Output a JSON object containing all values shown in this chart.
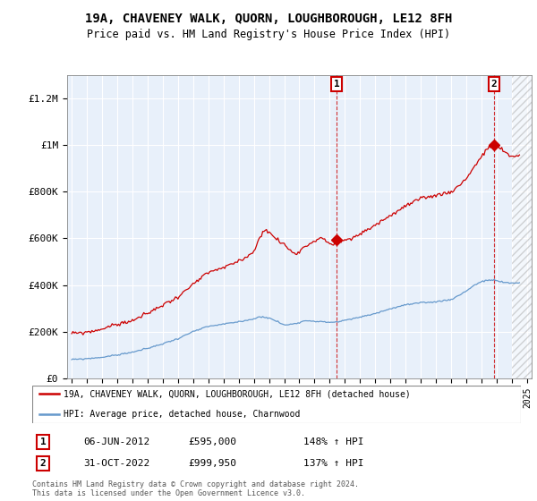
{
  "title": "19A, CHAVENEY WALK, QUORN, LOUGHBOROUGH, LE12 8FH",
  "subtitle": "Price paid vs. HM Land Registry's House Price Index (HPI)",
  "ylabel_ticks": [
    "£0",
    "£200K",
    "£400K",
    "£600K",
    "£800K",
    "£1M",
    "£1.2M"
  ],
  "ytick_values": [
    0,
    200000,
    400000,
    600000,
    800000,
    1000000,
    1200000
  ],
  "ylim": [
    0,
    1300000
  ],
  "xlim_start": 1994.7,
  "xlim_end": 2025.3,
  "red_line_color": "#cc0000",
  "blue_line_color": "#6699cc",
  "background_color": "#dce8f5",
  "plot_bg_color": "#e8f0fa",
  "grid_color": "#ffffff",
  "sale1_x": 2012.44,
  "sale1_y": 595000,
  "sale2_x": 2022.83,
  "sale2_y": 999950,
  "legend_label_red": "19A, CHAVENEY WALK, QUORN, LOUGHBOROUGH, LE12 8FH (detached house)",
  "legend_label_blue": "HPI: Average price, detached house, Charnwood",
  "footer_line1": "Contains HM Land Registry data © Crown copyright and database right 2024.",
  "footer_line2": "This data is licensed under the Open Government Licence v3.0.",
  "note1_date": "06-JUN-2012",
  "note1_price": "£595,000",
  "note1_hpi": "148% ↑ HPI",
  "note2_date": "31-OCT-2022",
  "note2_price": "£999,950",
  "note2_hpi": "137% ↑ HPI",
  "hatch_start": 2024.0
}
